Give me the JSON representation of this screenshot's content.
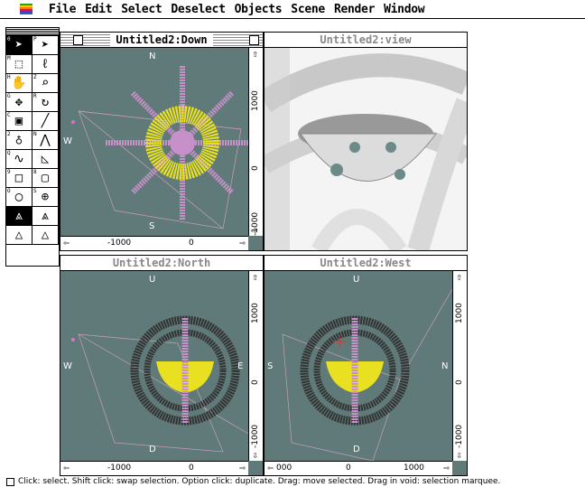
{
  "menubar": {
    "items": [
      "File",
      "Edit",
      "Select",
      "Deselect",
      "Objects",
      "Scene",
      "Render",
      "Window"
    ]
  },
  "palette": {
    "tools": [
      {
        "num": "0",
        "icon": "arrow-select-icon",
        "glyph": "➤",
        "selected": true
      },
      {
        "num": "P",
        "icon": "arrow-point-icon",
        "glyph": "➤",
        "selected": false
      },
      {
        "num": "M",
        "icon": "marquee-icon",
        "glyph": "⬚",
        "selected": false
      },
      {
        "num": "",
        "icon": "lasso-icon",
        "glyph": "ℓ",
        "selected": false
      },
      {
        "num": "H",
        "icon": "hand-icon",
        "glyph": "✋",
        "selected": false
      },
      {
        "num": "Z",
        "icon": "magnifier-icon",
        "glyph": "⌕",
        "selected": false
      },
      {
        "num": "G",
        "icon": "move-icon",
        "glyph": "✥",
        "selected": false
      },
      {
        "num": "R",
        "icon": "rotate-icon",
        "glyph": "↻",
        "selected": false
      },
      {
        "num": "C",
        "icon": "camera-icon",
        "glyph": "▣",
        "selected": false
      },
      {
        "num": "",
        "icon": "line-icon",
        "glyph": "╱",
        "selected": false
      },
      {
        "num": "2",
        "icon": "light-icon",
        "glyph": "♁",
        "selected": false
      },
      {
        "num": "N",
        "icon": "polyline-icon",
        "glyph": "⋀",
        "selected": false
      },
      {
        "num": "Q",
        "icon": "spline-icon",
        "glyph": "∿",
        "selected": false
      },
      {
        "num": "",
        "icon": "polygon-icon",
        "glyph": "◺",
        "selected": false
      },
      {
        "num": "9",
        "icon": "rectangle-icon",
        "glyph": "□",
        "selected": false
      },
      {
        "num": "8",
        "icon": "rounded-rect-icon",
        "glyph": "▢",
        "selected": false
      },
      {
        "num": "O",
        "icon": "oval-icon",
        "glyph": "◯",
        "selected": false
      },
      {
        "num": "S",
        "icon": "sphere-icon",
        "glyph": "⊕",
        "selected": false
      },
      {
        "num": "",
        "icon": "extrude-icon",
        "glyph": "⩓",
        "selected": true
      },
      {
        "num": "",
        "icon": "lathe-icon",
        "glyph": "⩓",
        "selected": false
      },
      {
        "num": "",
        "icon": "sweep-icon",
        "glyph": "△",
        "selected": false
      },
      {
        "num": "",
        "icon": "skin-icon",
        "glyph": "△",
        "selected": false
      }
    ]
  },
  "windows": {
    "down": {
      "title": "Untitled2:Down",
      "top_label": "N",
      "bottom_label": "S",
      "left_label": "W",
      "h_ticks": [
        "-1000",
        "0"
      ],
      "v_ticks": [
        "1000",
        "0",
        "-1000"
      ]
    },
    "view": {
      "title": "Untitled2:view"
    },
    "north": {
      "title": "Untitled2:North",
      "top_label": "U",
      "bottom_label": "D",
      "left_label": "W",
      "right_label": "E",
      "h_ticks": [
        "-1000",
        "0"
      ],
      "v_ticks": [
        "1000",
        "0",
        "-1000"
      ]
    },
    "west": {
      "title": "Untitled2:West",
      "top_label": "U",
      "bottom_label": "D",
      "left_label": "S",
      "right_label": "N",
      "h_ticks": [
        "000",
        "0",
        "1000"
      ],
      "v_ticks": [
        "1000",
        "0",
        "-1000"
      ]
    }
  },
  "status": {
    "text": "Click: select.   Shift click: swap selection.   Option click: duplicate.   Drag: move selected.   Drag in void: selection marquee."
  },
  "colors": {
    "viewport": "#5f7a78",
    "wire_pink": "#c890c8",
    "wire_yellow": "#e8e020",
    "render_bg": "#f0f0f0"
  }
}
